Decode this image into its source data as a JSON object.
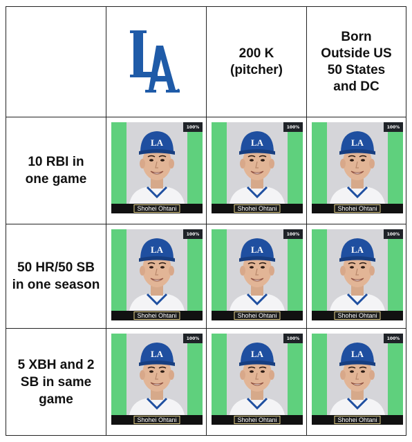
{
  "grid": {
    "columns": [
      {
        "label": "",
        "team": "Los Angeles Dodgers",
        "logo_text": "LA",
        "logo_color": "#1f5ba8"
      },
      {
        "label_lines": [
          "200 K",
          "(pitcher)"
        ]
      },
      {
        "label_lines": [
          "Born",
          "Outside US",
          "50 States",
          "and DC"
        ]
      }
    ],
    "rows": [
      {
        "label_lines": [
          "10 RBI in",
          "one game"
        ]
      },
      {
        "label_lines": [
          "50 HR/50 SB",
          "in one season"
        ]
      },
      {
        "label_lines": [
          "5 XBH and 2",
          "SB in same",
          "game"
        ]
      }
    ],
    "cells": [
      [
        {
          "player": "Shohei Ohtani",
          "rarity": "100%"
        },
        {
          "player": "Shohei Ohtani",
          "rarity": "100%"
        },
        {
          "player": "Shohei Ohtani",
          "rarity": "100%"
        }
      ],
      [
        {
          "player": "Shohei Ohtani",
          "rarity": "100%"
        },
        {
          "player": "Shohei Ohtani",
          "rarity": "100%"
        },
        {
          "player": "Shohei Ohtani",
          "rarity": "100%"
        }
      ],
      [
        {
          "player": "Shohei Ohtani",
          "rarity": "100%"
        },
        {
          "player": "Shohei Ohtani",
          "rarity": "100%"
        },
        {
          "player": "Shohei Ohtani",
          "rarity": "100%"
        }
      ]
    ]
  },
  "colors": {
    "card_green": "#5fd07d",
    "cap_blue": "#1f4fa0",
    "border": "#222222"
  }
}
